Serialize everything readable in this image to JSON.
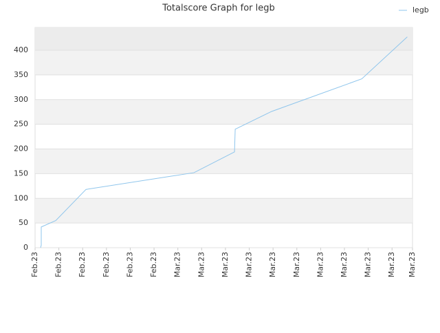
{
  "chart_data": {
    "type": "line",
    "title": "Totalscore Graph for legb",
    "x": [
      0.23,
      0.26,
      0.26,
      0.87,
      2.14,
      6.68,
      8.38,
      8.41,
      9.94,
      13.73,
      15.64
    ],
    "series": [
      {
        "name": "legb",
        "color": "#8ec5ec",
        "values": [
          0,
          5,
          42,
          55,
          118,
          152,
          194,
          240,
          276,
          342,
          427
        ]
      }
    ],
    "xlim": [
      0,
      15.86
    ],
    "xticks": [
      {
        "value": 0,
        "label": "Feb.23"
      },
      {
        "value": 1,
        "label": "Feb.23"
      },
      {
        "value": 2,
        "label": "Feb.23"
      },
      {
        "value": 3,
        "label": "Feb.23"
      },
      {
        "value": 4,
        "label": "Feb.23"
      },
      {
        "value": 5,
        "label": "Feb.23"
      },
      {
        "value": 6,
        "label": "Mar.23"
      },
      {
        "value": 7,
        "label": "Mar.23"
      },
      {
        "value": 8,
        "label": "Mar.23"
      },
      {
        "value": 9,
        "label": "Mar.23"
      },
      {
        "value": 10,
        "label": "Mar.23"
      },
      {
        "value": 11,
        "label": "Mar.23"
      },
      {
        "value": 12,
        "label": "Mar.23"
      },
      {
        "value": 13,
        "label": "Mar.23"
      },
      {
        "value": 14,
        "label": "Mar.23"
      },
      {
        "value": 15,
        "label": "Mar.23"
      },
      {
        "value": 15.86,
        "label": "Mar.23"
      }
    ],
    "ylim": [
      0,
      446
    ],
    "yticks": [
      0,
      50,
      100,
      150,
      200,
      250,
      300,
      350,
      400
    ],
    "grid": true,
    "legend": "top-right"
  }
}
